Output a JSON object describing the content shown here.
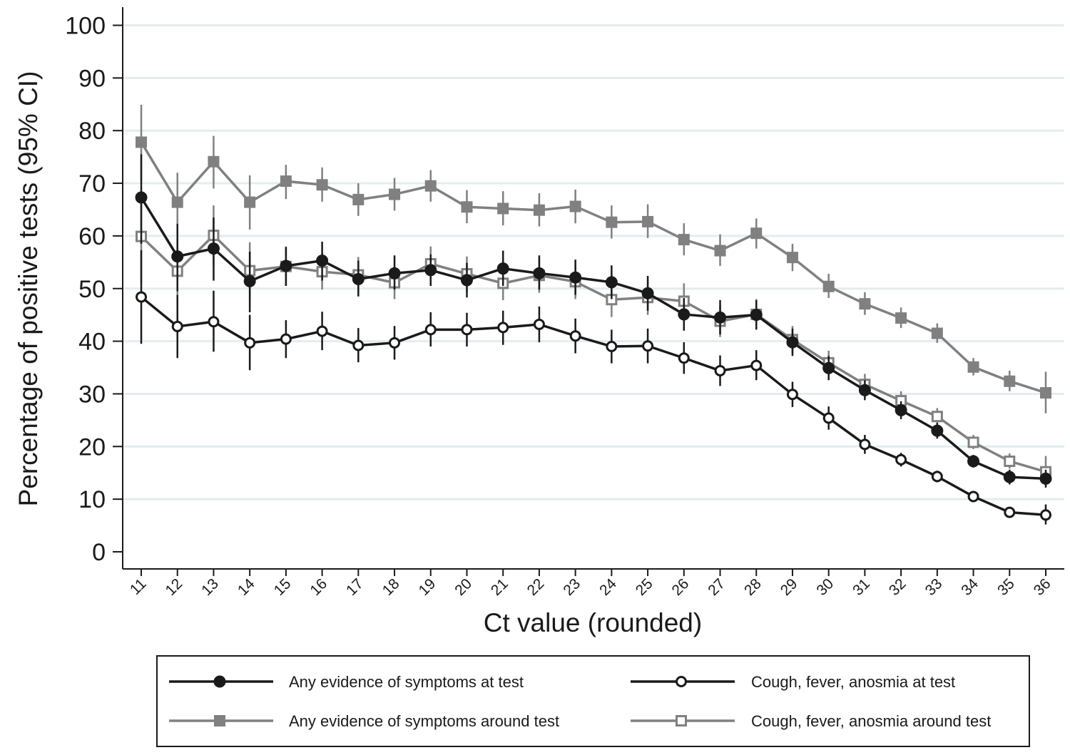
{
  "chart_data": {
    "type": "line",
    "xlabel": "Ct value (rounded)",
    "ylabel": "Percentage of positive tests (95% CI)",
    "ylim": [
      0,
      100
    ],
    "yticks": [
      0,
      10,
      20,
      30,
      40,
      50,
      60,
      70,
      80,
      90,
      100
    ],
    "x": [
      11,
      12,
      13,
      14,
      15,
      16,
      17,
      18,
      19,
      20,
      21,
      22,
      23,
      24,
      25,
      26,
      27,
      28,
      29,
      30,
      31,
      32,
      33,
      34,
      35,
      36
    ],
    "grid": "horizontal",
    "legend_position": "bottom",
    "series": [
      {
        "name": "Any evidence of symptoms at test",
        "color": "#1a1a1a",
        "marker": "circle-filled",
        "values": [
          67.3,
          56.1,
          57.6,
          51.4,
          54.3,
          55.3,
          51.8,
          52.9,
          53.5,
          51.6,
          53.8,
          52.9,
          52.1,
          51.2,
          49.1,
          45.1,
          44.5,
          45.0,
          39.8,
          34.9,
          30.7,
          26.9,
          23.0,
          17.2,
          14.2,
          13.9
        ],
        "lower": [
          58.5,
          49.5,
          51.5,
          45.5,
          50.5,
          51.5,
          48.5,
          49.8,
          50.5,
          48.3,
          50.5,
          49.8,
          48.8,
          48.0,
          45.8,
          42.0,
          41.3,
          42.2,
          37.2,
          32.6,
          28.8,
          25.2,
          21.5,
          16.0,
          12.8,
          12.2
        ],
        "upper": [
          75.5,
          62.3,
          63.5,
          57.0,
          57.9,
          58.9,
          55.3,
          56.3,
          56.5,
          54.9,
          57.2,
          56.3,
          55.5,
          54.4,
          52.4,
          48.2,
          47.8,
          47.8,
          42.4,
          37.2,
          32.6,
          28.6,
          24.5,
          18.4,
          15.6,
          15.6
        ]
      },
      {
        "name": "Cough, fever, anosmia at test",
        "color": "#1a1a1a",
        "marker": "circle-open",
        "values": [
          48.4,
          42.8,
          43.7,
          39.7,
          40.4,
          41.9,
          39.2,
          39.7,
          42.2,
          42.2,
          42.6,
          43.2,
          41.0,
          39.0,
          39.1,
          36.8,
          34.4,
          35.4,
          29.9,
          25.4,
          20.4,
          17.5,
          14.3,
          10.5,
          7.5,
          7.0
        ],
        "lower": [
          39.5,
          36.8,
          38.0,
          34.5,
          36.8,
          38.3,
          36.0,
          36.5,
          39.0,
          39.0,
          39.3,
          39.8,
          37.7,
          35.8,
          35.8,
          33.8,
          31.5,
          32.6,
          27.5,
          23.2,
          18.6,
          16.2,
          13.2,
          9.5,
          6.6,
          5.2
        ],
        "upper": [
          57.3,
          48.8,
          49.6,
          45.0,
          44.0,
          45.6,
          42.5,
          42.9,
          45.5,
          45.4,
          45.8,
          46.6,
          44.3,
          42.2,
          42.4,
          39.8,
          37.3,
          38.3,
          32.3,
          27.6,
          22.2,
          18.8,
          15.4,
          11.5,
          8.5,
          9.0
        ]
      },
      {
        "name": "Any evidence of symptoms around test",
        "color": "#808080",
        "marker": "square-filled",
        "values": [
          77.8,
          66.4,
          74.1,
          66.4,
          70.4,
          69.7,
          66.9,
          67.9,
          69.5,
          65.5,
          65.2,
          64.9,
          65.6,
          62.6,
          62.7,
          59.3,
          57.2,
          60.5,
          55.9,
          50.4,
          47.1,
          44.4,
          41.5,
          35.1,
          32.4,
          30.2
        ],
        "lower": [
          70.5,
          60.5,
          69.0,
          61.2,
          67.0,
          66.5,
          63.8,
          64.8,
          66.5,
          62.4,
          62.0,
          61.8,
          62.4,
          59.5,
          59.6,
          56.3,
          54.3,
          57.6,
          53.3,
          48.2,
          45.0,
          42.5,
          39.7,
          33.5,
          30.5,
          26.3
        ],
        "upper": [
          84.9,
          72.0,
          79.0,
          71.5,
          73.5,
          73.0,
          70.0,
          71.0,
          72.5,
          68.7,
          68.5,
          68.1,
          68.8,
          65.8,
          66.0,
          62.4,
          60.3,
          63.3,
          58.5,
          52.8,
          49.3,
          46.4,
          43.4,
          36.8,
          34.4,
          34.2
        ]
      },
      {
        "name": "Cough, fever, anosmia around test",
        "color": "#808080",
        "marker": "square-open",
        "values": [
          59.9,
          53.3,
          60.1,
          53.4,
          54.2,
          53.2,
          52.6,
          51.1,
          54.7,
          52.8,
          51.0,
          52.5,
          51.3,
          47.9,
          48.3,
          47.6,
          43.8,
          45.1,
          40.3,
          35.9,
          31.8,
          28.7,
          25.7,
          20.8,
          17.2,
          15.2
        ],
        "lower": [
          51.0,
          47.0,
          54.5,
          48.0,
          50.5,
          49.8,
          49.3,
          48.0,
          51.5,
          49.5,
          47.8,
          49.2,
          48.0,
          44.6,
          45.0,
          44.3,
          40.8,
          42.2,
          37.7,
          33.6,
          29.8,
          26.9,
          24.1,
          19.5,
          15.8,
          12.6
        ],
        "upper": [
          68.5,
          59.5,
          65.8,
          58.8,
          58.0,
          56.7,
          56.0,
          54.3,
          58.0,
          56.1,
          54.3,
          55.8,
          54.6,
          51.3,
          51.7,
          51.0,
          46.8,
          48.0,
          42.9,
          38.2,
          33.8,
          30.5,
          27.3,
          22.2,
          18.7,
          18.2
        ]
      }
    ]
  }
}
